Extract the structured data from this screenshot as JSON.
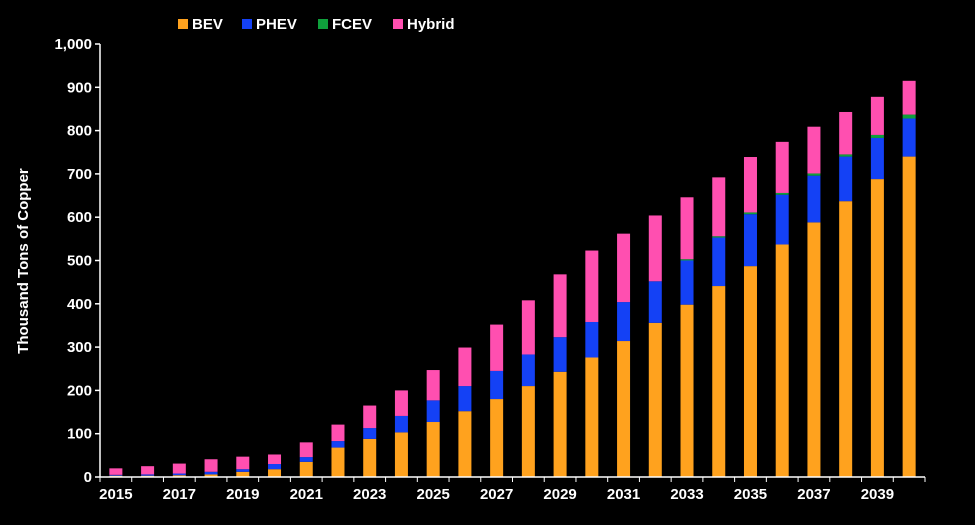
{
  "chart_data": {
    "type": "bar",
    "stacked": true,
    "title": "",
    "xlabel": "",
    "ylabel": "Thousand Tons of Copper",
    "ylim": [
      0,
      1000
    ],
    "yticks": [
      "0",
      "100",
      "200",
      "300",
      "400",
      "500",
      "600",
      "700",
      "800",
      "900",
      "1,000"
    ],
    "ytick_values": [
      0,
      100,
      200,
      300,
      400,
      500,
      600,
      700,
      800,
      900,
      1000
    ],
    "categories": [
      "2015",
      "2016",
      "2017",
      "2018",
      "2019",
      "2020",
      "2021",
      "2022",
      "2023",
      "2024",
      "2025",
      "2026",
      "2027",
      "2028",
      "2029",
      "2030",
      "2031",
      "2032",
      "2033",
      "2034",
      "2035",
      "2036",
      "2037",
      "2038",
      "2039",
      "2040"
    ],
    "xtick_labels": [
      "2015",
      "2017",
      "2019",
      "2021",
      "2023",
      "2025",
      "2027",
      "2029",
      "2031",
      "2033",
      "2035",
      "2037",
      "2039"
    ],
    "legend_position": "top-center",
    "grid": false,
    "background": "#000000",
    "series": [
      {
        "name": "BEV",
        "color": "#ffa21e",
        "values": [
          3,
          3,
          4,
          6,
          12,
          18,
          35,
          68,
          88,
          103,
          127,
          152,
          180,
          210,
          243,
          276,
          314,
          356,
          398,
          441,
          487,
          537,
          588,
          637,
          688,
          740
        ]
      },
      {
        "name": "PHEV",
        "color": "#1441f5",
        "values": [
          2,
          3,
          4,
          6,
          6,
          12,
          11,
          15,
          25,
          38,
          50,
          58,
          65,
          73,
          80,
          82,
          90,
          96,
          102,
          112,
          120,
          115,
          108,
          103,
          95,
          88
        ]
      },
      {
        "name": "FCEV",
        "color": "#0fa03c",
        "values": [
          0,
          0,
          0,
          0,
          0,
          0,
          0,
          0,
          0,
          0,
          0,
          0,
          0,
          0,
          0,
          0,
          0,
          0,
          3,
          3,
          4,
          4,
          5,
          5,
          7,
          9
        ]
      },
      {
        "name": "Hybrid",
        "color": "#ff4fb0",
        "values": [
          15,
          19,
          23,
          29,
          29,
          22,
          34,
          38,
          52,
          59,
          70,
          89,
          107,
          125,
          145,
          165,
          158,
          152,
          143,
          136,
          128,
          118,
          108,
          98,
          88,
          78
        ]
      }
    ]
  }
}
